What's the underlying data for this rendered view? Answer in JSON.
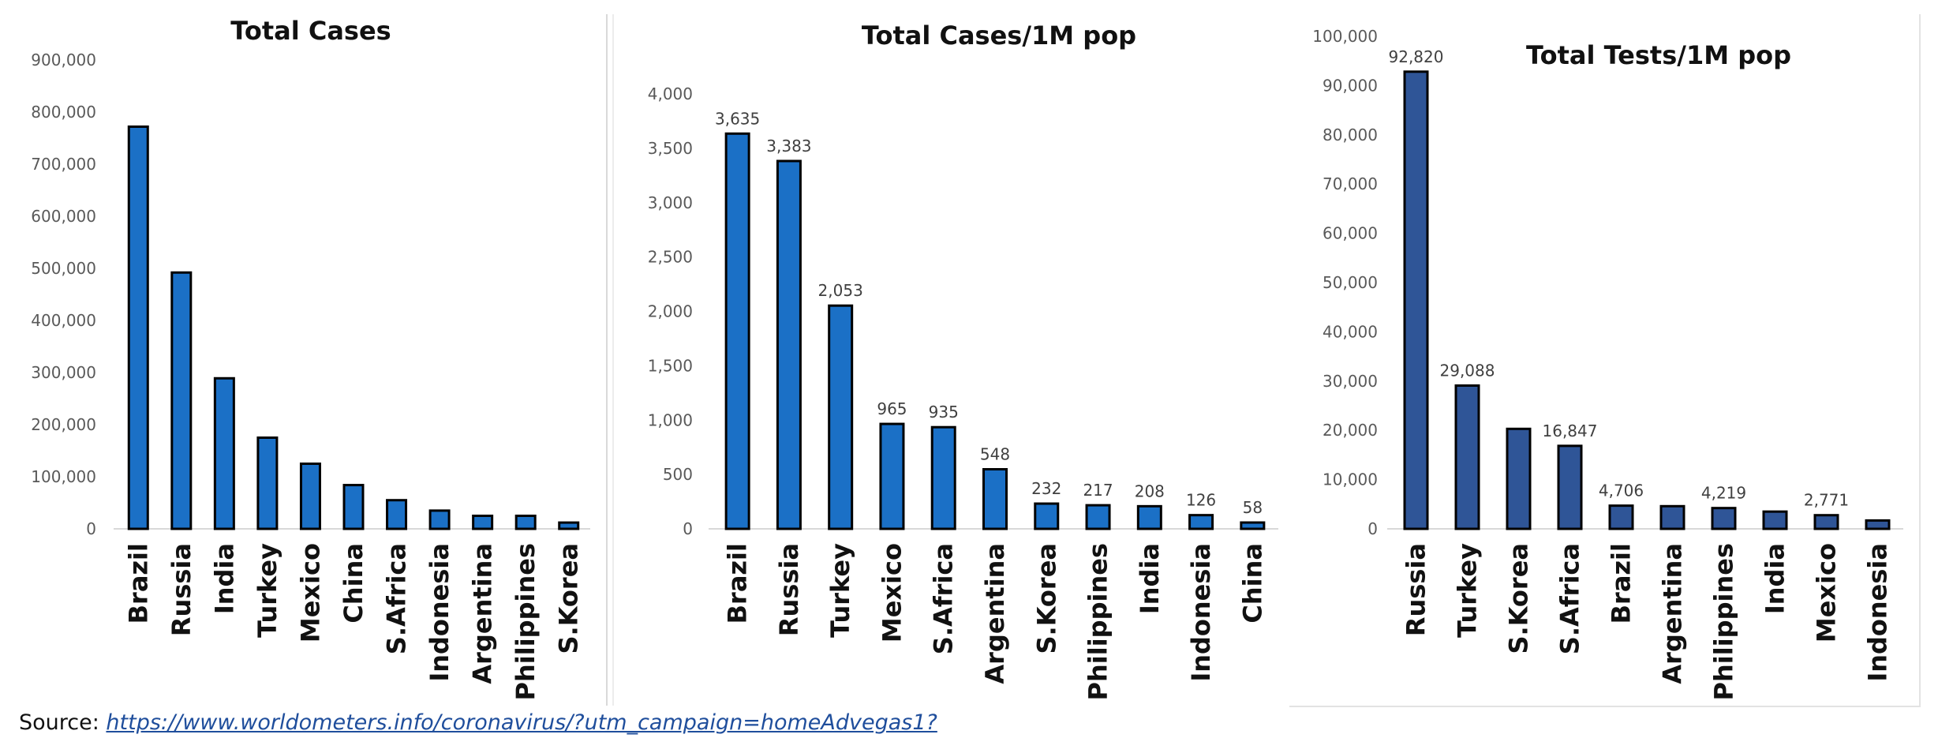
{
  "source": {
    "prefix": "Source: ",
    "link_text": "https://www.worldometers.info/coronavirus/?utm_campaign=homeAdvegas1?"
  },
  "colors": {
    "bar_fill_a": "#1b70c6",
    "bar_fill_b": "#2f5597",
    "bar_stroke": "#000000"
  },
  "chart_data": [
    {
      "type": "bar",
      "title": "Total Cases",
      "categories": [
        "Brazil",
        "Russia",
        "India",
        "Turkey",
        "Mexico",
        "China",
        "S.Africa",
        "Indonesia",
        "Argentina",
        "Philippines",
        "S.Korea"
      ],
      "values": [
        772000,
        492000,
        289000,
        175000,
        125000,
        84000,
        55000,
        35000,
        25000,
        25000,
        12000
      ],
      "ylim": [
        0,
        900000
      ],
      "yticks": [
        "0",
        "100,000",
        "200,000",
        "300,000",
        "400,000",
        "500,000",
        "600,000",
        "700,000",
        "800,000",
        "900,000"
      ],
      "data_labels": [],
      "bar_color": "#1b70c6"
    },
    {
      "type": "bar",
      "title": "Total Cases/1M pop",
      "categories": [
        "Brazil",
        "Russia",
        "Turkey",
        "Mexico",
        "S.Africa",
        "Argentina",
        "S.Korea",
        "Philippines",
        "India",
        "Indonesia",
        "China"
      ],
      "values": [
        3635,
        3383,
        2053,
        965,
        935,
        548,
        232,
        217,
        208,
        126,
        58
      ],
      "ylim": [
        0,
        4000
      ],
      "yticks": [
        "0",
        "500",
        "1,000",
        "1,500",
        "2,000",
        "2,500",
        "3,000",
        "3,500",
        "4,000"
      ],
      "data_labels": [
        "3,635",
        "3,383",
        "2,053",
        "965",
        "935",
        "548",
        "232",
        "217",
        "208",
        "126",
        "58"
      ],
      "bar_color": "#1b70c6"
    },
    {
      "type": "bar",
      "title": "Total Tests/1M pop",
      "categories": [
        "Russia",
        "Turkey",
        "S.Korea",
        "S.Africa",
        "Brazil",
        "Argentina",
        "Philippines",
        "India",
        "Mexico",
        "Indonesia"
      ],
      "values": [
        92820,
        29088,
        20300,
        16847,
        4706,
        4600,
        4219,
        3500,
        2771,
        1700
      ],
      "ylim": [
        0,
        100000
      ],
      "yticks": [
        "0",
        "10,000",
        "20,000",
        "30,000",
        "40,000",
        "50,000",
        "60,000",
        "70,000",
        "80,000",
        "90,000",
        "100,000"
      ],
      "data_labels": [
        "92,820",
        "29,088",
        "",
        "16,847",
        "4,706",
        "",
        "4,219",
        "",
        "2,771",
        ""
      ],
      "bar_color": "#2f5597"
    }
  ]
}
